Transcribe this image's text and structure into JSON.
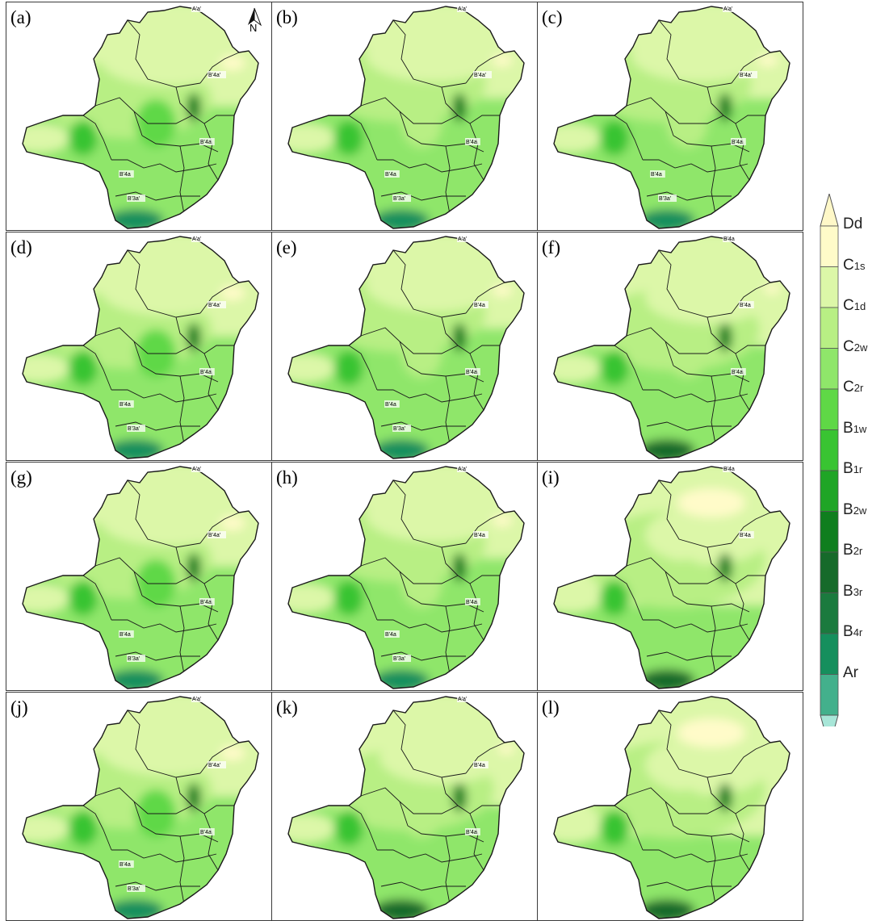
{
  "panels": [
    {
      "label": "(a)",
      "codes": [
        "A'a'",
        "B'4a'",
        "B'4a",
        "B'4a",
        "B'3a'"
      ],
      "variant": 0
    },
    {
      "label": "(b)",
      "codes": [
        "A'a'",
        "B'4a'",
        "B'4a",
        "B'4a",
        "B'3a'"
      ],
      "variant": 1
    },
    {
      "label": "(c)",
      "codes": [
        "A'a'",
        "B'4a'",
        "B'4a",
        "B'4a",
        "B'3a'"
      ],
      "variant": 1
    },
    {
      "label": "(d)",
      "codes": [
        "A'a'",
        "B'4a'",
        "B'4a",
        "B'4a",
        "B'3a'"
      ],
      "variant": 0
    },
    {
      "label": "(e)",
      "codes": [
        "A'a'",
        "B'4a",
        "B'4a",
        "B'4a",
        "B'3a'"
      ],
      "variant": 1
    },
    {
      "label": "(f)",
      "codes": [
        "B'4a",
        "B'4a",
        "B'4a"
      ],
      "variant": 2
    },
    {
      "label": "(g)",
      "codes": [
        "A'a'",
        "B'4a'",
        "B'4a",
        "B'4a",
        "B'3a'"
      ],
      "variant": 0
    },
    {
      "label": "(h)",
      "codes": [
        "A'a'",
        "B'4a",
        "B'4a",
        "B'4a",
        "B'3a'"
      ],
      "variant": 1
    },
    {
      "label": "(i)",
      "codes": [
        "B'4a",
        "B'4a"
      ],
      "variant": 3
    },
    {
      "label": "(j)",
      "codes": [
        "A'a'",
        "B'4a'",
        "B'4a",
        "B'4a",
        "B'3a'"
      ],
      "variant": 0
    },
    {
      "label": "(k)",
      "codes": [
        "A'a'",
        "B'4a",
        "B'4a"
      ],
      "variant": 2
    },
    {
      "label": "(l)",
      "codes": [],
      "variant": 3
    }
  ],
  "north_arrow": {
    "letter": "N",
    "icon": "north-arrow-icon"
  },
  "legend": {
    "top_cap_color": "#fff8c8",
    "bottom_cap_color": "#a8e6d8",
    "classes": [
      {
        "main": "Dd",
        "sub": "",
        "color": "#fffbc9"
      },
      {
        "main": "C",
        "sub": "1s",
        "color": "#dcf7a8"
      },
      {
        "main": "C",
        "sub": "1d",
        "color": "#b8ef84"
      },
      {
        "main": "C",
        "sub": "2w",
        "color": "#8fe66a"
      },
      {
        "main": "C",
        "sub": "2r",
        "color": "#5fd846"
      },
      {
        "main": "B",
        "sub": "1w",
        "color": "#39c432"
      },
      {
        "main": "B",
        "sub": "1r",
        "color": "#1fa526"
      },
      {
        "main": "B",
        "sub": "2w",
        "color": "#0f7e1e"
      },
      {
        "main": "B",
        "sub": "2r",
        "color": "#166a2a"
      },
      {
        "main": "B",
        "sub": "3r",
        "color": "#1b7a3e"
      },
      {
        "main": "B",
        "sub": "4r",
        "color": "#158f5d"
      },
      {
        "main": "Ar",
        "sub": "",
        "color": "#43b08c"
      }
    ]
  }
}
